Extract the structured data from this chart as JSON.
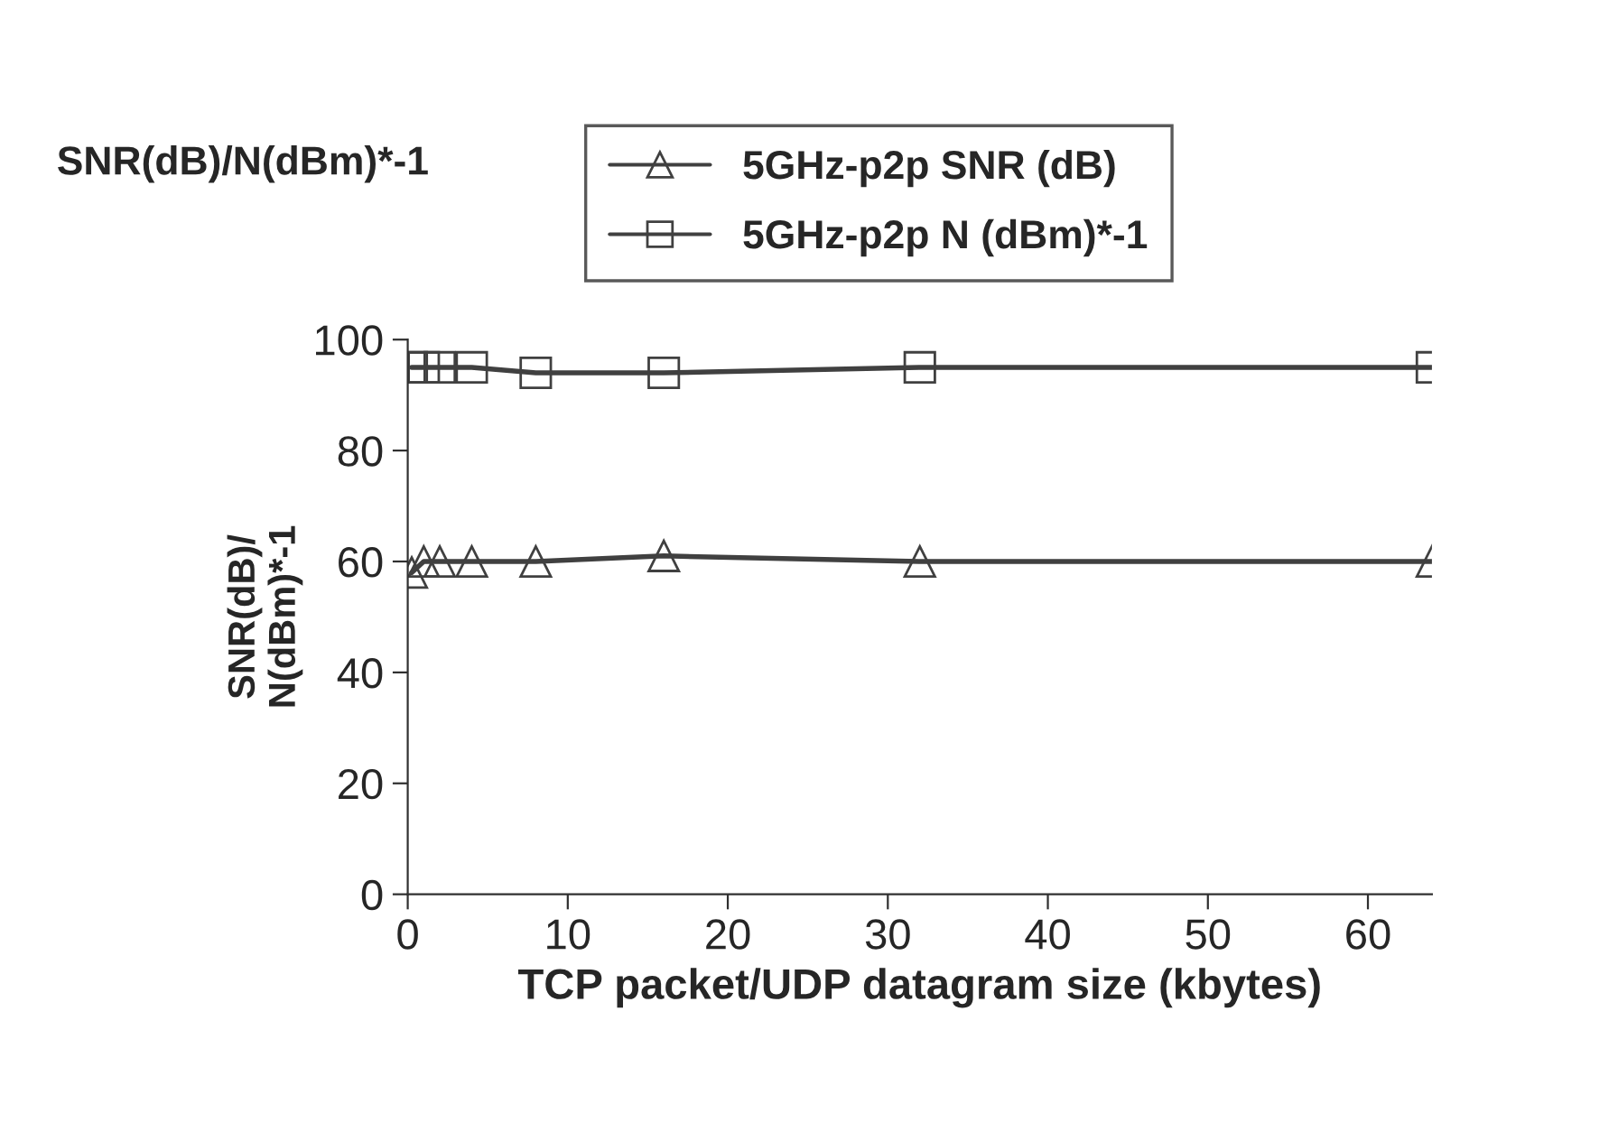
{
  "chart_data": {
    "type": "line",
    "title": "SNR(dB)/N(dBm)*-1",
    "xlabel": "TCP packet/UDP datagram size (kbytes)",
    "ylabel": "SNR(dB)/\nN(dBm)*-1",
    "x": [
      0.25,
      1,
      2,
      4,
      8,
      16,
      32,
      64
    ],
    "series": [
      {
        "name": "5GHz-p2p SNR (dB)",
        "color": "#404040",
        "marker": "triangle",
        "values": [
          58,
          60,
          60,
          60,
          60,
          61,
          60,
          60
        ]
      },
      {
        "name": "5GHz-p2p N (dBm)*-1",
        "color": "#404040",
        "marker": "square",
        "values": [
          95,
          95,
          95,
          95,
          94,
          94,
          95,
          95
        ]
      }
    ],
    "xlim": [
      0,
      64
    ],
    "xticks": [
      0,
      10,
      20,
      30,
      40,
      50,
      60
    ],
    "ylim": [
      0,
      100
    ],
    "yticks": [
      0,
      20,
      40,
      60,
      80,
      100
    ],
    "grid": false,
    "legend": "top",
    "line_style": "solid"
  }
}
